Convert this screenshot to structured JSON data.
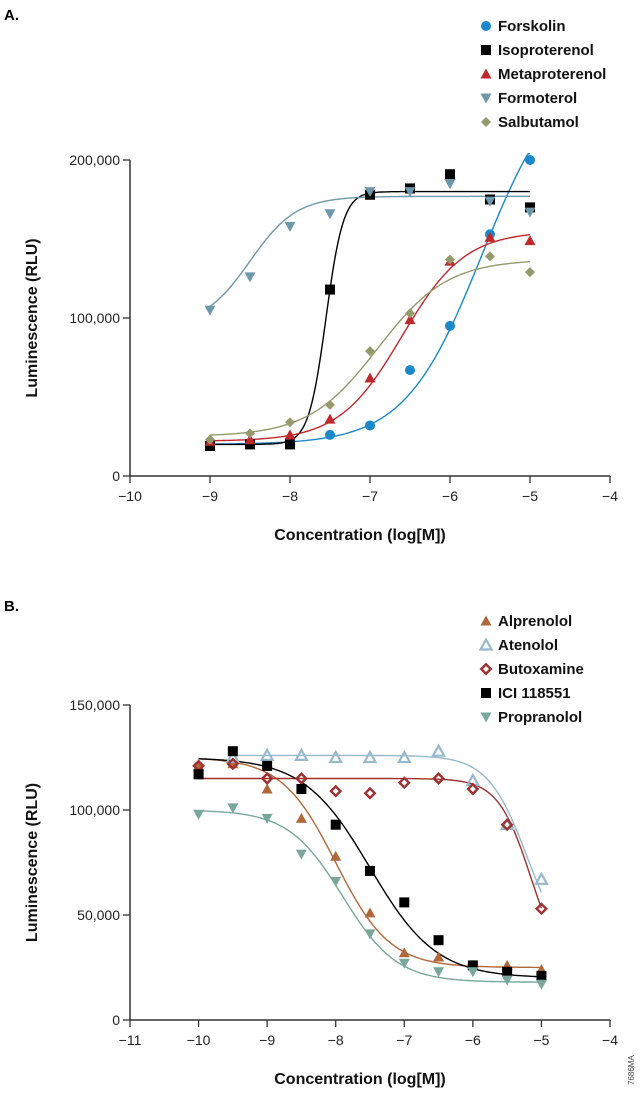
{
  "code_label": "7686MA",
  "chart_data": [
    {
      "panel": "A.",
      "type": "scatter",
      "xlabel": "Concentration (log[M])",
      "ylabel": "Luminescence (RLU)",
      "xlim": [
        -10,
        -4
      ],
      "ylim": [
        0,
        200000
      ],
      "xticks": [
        -10,
        -9,
        -8,
        -7,
        -6,
        -5,
        -4
      ],
      "xtick_labels": [
        "−10",
        "−9",
        "−8",
        "−7",
        "−6",
        "−5",
        "−4"
      ],
      "yticks": [
        0,
        100000,
        200000
      ],
      "ytick_labels": [
        "0",
        "100,000",
        "200,000"
      ],
      "grid": false,
      "legend": "top-right",
      "x": [
        -9,
        -8.5,
        -8,
        -7.5,
        -7,
        -6.5,
        -6,
        -5.5,
        -5
      ],
      "series": [
        {
          "name": "Forskolin",
          "marker": "circle",
          "color": "#1a88c9",
          "values": [
            20000,
            20000,
            20000,
            26000,
            32000,
            67000,
            95000,
            153000,
            200000
          ]
        },
        {
          "name": "Isoproterenol",
          "marker": "square",
          "color": "#000000",
          "values": [
            19000,
            20000,
            20000,
            118000,
            178000,
            182000,
            191000,
            175000,
            170000
          ]
        },
        {
          "name": "Metaproterenol",
          "marker": "triangle-up",
          "color": "#c0282d",
          "values": [
            22000,
            23000,
            26000,
            36000,
            62000,
            99000,
            136000,
            151000,
            149000
          ]
        },
        {
          "name": "Formoterol",
          "marker": "triangle-down",
          "color": "#6f97aa",
          "values": [
            105000,
            126000,
            158000,
            166000,
            180000,
            180000,
            185000,
            174000,
            167000
          ]
        },
        {
          "name": "Salbutamol",
          "marker": "diamond",
          "color": "#949a6c",
          "values": [
            23000,
            27000,
            34000,
            45000,
            79000,
            103000,
            137000,
            139000,
            129000
          ]
        }
      ]
    },
    {
      "panel": "B.",
      "type": "scatter",
      "xlabel": "Concentration (log[M])",
      "ylabel": "Luminescence (RLU)",
      "xlim": [
        -11,
        -4
      ],
      "ylim": [
        0,
        150000
      ],
      "xticks": [
        -11,
        -10,
        -9,
        -8,
        -7,
        -6,
        -5,
        -4
      ],
      "xtick_labels": [
        "−11",
        "−10",
        "−9",
        "−8",
        "−7",
        "−6",
        "−5",
        "−4"
      ],
      "yticks": [
        0,
        50000,
        100000,
        150000
      ],
      "ytick_labels": [
        "0",
        "50,000",
        "100,000",
        "150,000"
      ],
      "grid": false,
      "legend": "top-right",
      "x": [
        -10,
        -9.5,
        -9,
        -8.5,
        -8,
        -7.5,
        -7,
        -6.5,
        -6,
        -5.5,
        -5
      ],
      "series": [
        {
          "name": "Alprenolol",
          "marker": "triangle-up",
          "color": "#b0673a",
          "values": [
            121000,
            122000,
            110000,
            96000,
            78000,
            51000,
            32000,
            30000,
            26000,
            26000,
            24000
          ]
        },
        {
          "name": "Atenolol",
          "marker": "triangle-up-open",
          "color": "#98b9cc",
          "values": [
            null,
            125000,
            126000,
            126000,
            125000,
            125000,
            125000,
            128000,
            114000,
            93000,
            67000
          ]
        },
        {
          "name": "Butoxamine",
          "marker": "diamond-open",
          "color": "#a03030",
          "values": [
            121000,
            122000,
            115000,
            115000,
            109000,
            108000,
            113000,
            115000,
            110000,
            93000,
            53000
          ]
        },
        {
          "name": "ICI 118551",
          "marker": "square",
          "color": "#000000",
          "values": [
            117000,
            128000,
            121000,
            110000,
            93000,
            71000,
            56000,
            38000,
            26000,
            23000,
            21000
          ]
        },
        {
          "name": "Propranolol",
          "marker": "triangle-down",
          "color": "#79a89b",
          "values": [
            98000,
            101000,
            96000,
            79000,
            66000,
            41000,
            27000,
            23000,
            23000,
            19000,
            17000
          ]
        }
      ]
    }
  ]
}
